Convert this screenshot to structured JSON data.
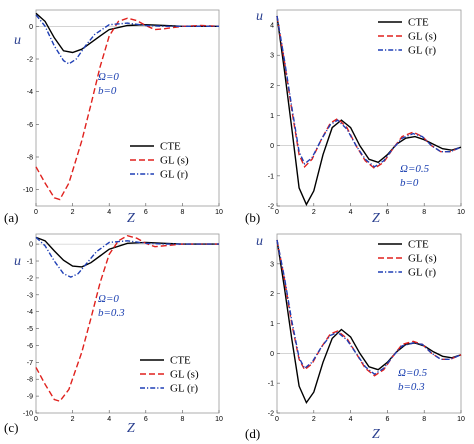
{
  "chart_data": [
    {
      "type": "line",
      "panel_label": "(a)",
      "xlabel": "Z",
      "ylabel": "u",
      "xlim": [
        0,
        10
      ],
      "ylim": [
        -11,
        1
      ],
      "xticks": [
        "0",
        "2",
        "4",
        "6",
        "8",
        "10"
      ],
      "yticks": [
        "0",
        "-2",
        "-4",
        "-6",
        "-8",
        "-10"
      ],
      "yticks_values": [
        0,
        -2,
        -4,
        -6,
        -8,
        -10
      ],
      "annotation": [
        "Ω=0",
        "b=0"
      ],
      "legend_position": "bottom-right",
      "series": [
        {
          "name": "CTE",
          "color": "#000000",
          "dash": "solid",
          "points": [
            [
              0,
              0.8
            ],
            [
              0.5,
              0.3
            ],
            [
              1,
              -0.7
            ],
            [
              1.5,
              -1.5
            ],
            [
              2,
              -1.6
            ],
            [
              2.5,
              -1.4
            ],
            [
              3,
              -1.0
            ],
            [
              3.5,
              -0.6
            ],
            [
              4,
              -0.2
            ],
            [
              5,
              0.05
            ],
            [
              6,
              0.1
            ],
            [
              7,
              0.05
            ],
            [
              8,
              0
            ],
            [
              9,
              0
            ],
            [
              10,
              0
            ]
          ]
        },
        {
          "name": "GL (s)",
          "color": "#e0211d",
          "dash": "dashed",
          "points": [
            [
              0,
              -8.6
            ],
            [
              0.5,
              -9.6
            ],
            [
              1,
              -10.5
            ],
            [
              1.3,
              -10.6
            ],
            [
              1.8,
              -9.6
            ],
            [
              2.5,
              -7.0
            ],
            [
              3,
              -4.8
            ],
            [
              3.5,
              -2.5
            ],
            [
              4,
              -0.6
            ],
            [
              4.5,
              0.3
            ],
            [
              5,
              0.5
            ],
            [
              5.5,
              0.35
            ],
            [
              6,
              0.05
            ],
            [
              6.5,
              -0.2
            ],
            [
              7,
              -0.15
            ],
            [
              8,
              0
            ],
            [
              9,
              0.05
            ],
            [
              10,
              0
            ]
          ]
        },
        {
          "name": "GL (r)",
          "color": "#1f3fb5",
          "dash": "dashdot",
          "points": [
            [
              0,
              0.7
            ],
            [
              0.5,
              0.0
            ],
            [
              1,
              -1.2
            ],
            [
              1.5,
              -2.1
            ],
            [
              1.8,
              -2.3
            ],
            [
              2.2,
              -2.0
            ],
            [
              2.7,
              -1.2
            ],
            [
              3.2,
              -0.5
            ],
            [
              4,
              0.1
            ],
            [
              5,
              0.2
            ],
            [
              6,
              0.05
            ],
            [
              7,
              0
            ],
            [
              8,
              0
            ],
            [
              10,
              0
            ]
          ]
        }
      ]
    },
    {
      "type": "line",
      "panel_label": "(b)",
      "xlabel": "Z",
      "ylabel": "u",
      "xlim": [
        0,
        10
      ],
      "ylim": [
        -2,
        4.5
      ],
      "xticks": [
        "0",
        "2",
        "4",
        "6",
        "8",
        "10"
      ],
      "yticks": [
        "4",
        "3",
        "2",
        "1",
        "0",
        "-1",
        "-2"
      ],
      "yticks_values": [
        4,
        3,
        2,
        1,
        0,
        -1,
        -2
      ],
      "annotation": [
        "Ω=0.5",
        "b=0"
      ],
      "legend_position": "top-right",
      "series": [
        {
          "name": "CTE",
          "color": "#000000",
          "dash": "solid",
          "points": [
            [
              0,
              4.3
            ],
            [
              0.4,
              2.5
            ],
            [
              0.8,
              0.6
            ],
            [
              1.2,
              -1.4
            ],
            [
              1.6,
              -1.95
            ],
            [
              2.0,
              -1.5
            ],
            [
              2.5,
              -0.3
            ],
            [
              3.0,
              0.6
            ],
            [
              3.5,
              0.85
            ],
            [
              4.0,
              0.6
            ],
            [
              4.5,
              0.0
            ],
            [
              5.0,
              -0.45
            ],
            [
              5.5,
              -0.55
            ],
            [
              6.0,
              -0.3
            ],
            [
              6.5,
              0.05
            ],
            [
              7.0,
              0.25
            ],
            [
              7.5,
              0.3
            ],
            [
              8.0,
              0.2
            ],
            [
              8.5,
              0.05
            ],
            [
              9.0,
              -0.1
            ],
            [
              9.5,
              -0.15
            ],
            [
              10,
              -0.05
            ]
          ]
        },
        {
          "name": "GL (s)",
          "color": "#e0211d",
          "dash": "dashed",
          "points": [
            [
              0,
              4.3
            ],
            [
              0.4,
              2.8
            ],
            [
              0.8,
              1.2
            ],
            [
              1.2,
              -0.3
            ],
            [
              1.5,
              -0.7
            ],
            [
              1.9,
              -0.45
            ],
            [
              2.4,
              0.2
            ],
            [
              2.9,
              0.75
            ],
            [
              3.3,
              0.9
            ],
            [
              3.8,
              0.6
            ],
            [
              4.3,
              0.0
            ],
            [
              4.8,
              -0.5
            ],
            [
              5.3,
              -0.75
            ],
            [
              5.8,
              -0.55
            ],
            [
              6.3,
              -0.1
            ],
            [
              6.8,
              0.3
            ],
            [
              7.4,
              0.45
            ],
            [
              7.9,
              0.3
            ],
            [
              8.4,
              0.0
            ],
            [
              8.9,
              -0.2
            ],
            [
              9.4,
              -0.2
            ],
            [
              10,
              -0.05
            ]
          ]
        },
        {
          "name": "GL (r)",
          "color": "#1f3fb5",
          "dash": "dashdot",
          "points": [
            [
              0,
              4.3
            ],
            [
              0.4,
              2.85
            ],
            [
              0.8,
              1.3
            ],
            [
              1.2,
              -0.2
            ],
            [
              1.5,
              -0.6
            ],
            [
              1.9,
              -0.4
            ],
            [
              2.4,
              0.2
            ],
            [
              2.9,
              0.7
            ],
            [
              3.3,
              0.85
            ],
            [
              3.8,
              0.55
            ],
            [
              4.3,
              0.0
            ],
            [
              4.8,
              -0.45
            ],
            [
              5.3,
              -0.7
            ],
            [
              5.8,
              -0.5
            ],
            [
              6.3,
              -0.1
            ],
            [
              6.8,
              0.25
            ],
            [
              7.4,
              0.4
            ],
            [
              7.9,
              0.3
            ],
            [
              8.4,
              0.0
            ],
            [
              8.9,
              -0.2
            ],
            [
              9.4,
              -0.2
            ],
            [
              10,
              -0.05
            ]
          ]
        }
      ]
    },
    {
      "type": "line",
      "panel_label": "(c)",
      "xlabel": "Z",
      "ylabel": "u",
      "xlim": [
        0,
        10
      ],
      "ylim": [
        -10,
        0.6
      ],
      "xticks": [
        "0",
        "2",
        "4",
        "6",
        "8",
        "10"
      ],
      "yticks": [
        "0",
        "-1",
        "-2",
        "-3",
        "-4",
        "-5",
        "-6",
        "-7",
        "-8",
        "-9",
        "-10"
      ],
      "yticks_values": [
        0,
        -1,
        -2,
        -3,
        -4,
        -5,
        -6,
        -7,
        -8,
        -9,
        -10
      ],
      "annotation": [
        "Ω=0",
        "b=0.3"
      ],
      "legend_position": "bottom-right",
      "series": [
        {
          "name": "CTE",
          "color": "#000000",
          "dash": "solid",
          "points": [
            [
              0,
              0.4
            ],
            [
              0.5,
              0.2
            ],
            [
              1,
              -0.4
            ],
            [
              1.5,
              -0.95
            ],
            [
              2,
              -1.3
            ],
            [
              2.5,
              -1.35
            ],
            [
              3,
              -1.1
            ],
            [
              3.5,
              -0.7
            ],
            [
              4,
              -0.3
            ],
            [
              5,
              0.05
            ],
            [
              6,
              0.1
            ],
            [
              7,
              0.05
            ],
            [
              8,
              0
            ],
            [
              10,
              0
            ]
          ]
        },
        {
          "name": "GL (s)",
          "color": "#e0211d",
          "dash": "dashed",
          "points": [
            [
              0,
              -7.3
            ],
            [
              0.5,
              -8.3
            ],
            [
              1,
              -9.2
            ],
            [
              1.3,
              -9.3
            ],
            [
              1.8,
              -8.6
            ],
            [
              2.5,
              -6.4
            ],
            [
              3,
              -4.4
            ],
            [
              3.5,
              -2.3
            ],
            [
              4,
              -0.6
            ],
            [
              4.5,
              0.2
            ],
            [
              5,
              0.5
            ],
            [
              5.5,
              0.35
            ],
            [
              6,
              0.05
            ],
            [
              6.5,
              -0.15
            ],
            [
              7,
              -0.1
            ],
            [
              8,
              0
            ],
            [
              10,
              0
            ]
          ]
        },
        {
          "name": "GL (r)",
          "color": "#1f3fb5",
          "dash": "dashdot",
          "points": [
            [
              0,
              0.4
            ],
            [
              0.5,
              -0.1
            ],
            [
              1,
              -1.0
            ],
            [
              1.5,
              -1.75
            ],
            [
              1.9,
              -1.95
            ],
            [
              2.3,
              -1.75
            ],
            [
              2.8,
              -1.1
            ],
            [
              3.3,
              -0.45
            ],
            [
              4,
              0.1
            ],
            [
              5,
              0.2
            ],
            [
              6,
              0.05
            ],
            [
              7,
              0
            ],
            [
              10,
              0
            ]
          ]
        }
      ]
    },
    {
      "type": "line",
      "panel_label": "(d)",
      "xlabel": "Z",
      "ylabel": "u",
      "xlim": [
        0,
        10
      ],
      "ylim": [
        -2,
        4
      ],
      "xticks": [
        "0",
        "2",
        "4",
        "6",
        "8",
        "10"
      ],
      "yticks": [
        "3",
        "2",
        "1",
        "0",
        "-1",
        "-2"
      ],
      "yticks_values": [
        3,
        2,
        1,
        0,
        -1,
        -2
      ],
      "annotation": [
        "Ω=0.5",
        "b=0.3"
      ],
      "legend_position": "top-right",
      "series": [
        {
          "name": "CTE",
          "color": "#000000",
          "dash": "solid",
          "points": [
            [
              0,
              3.8
            ],
            [
              0.4,
              2.2
            ],
            [
              0.8,
              0.5
            ],
            [
              1.2,
              -1.1
            ],
            [
              1.6,
              -1.65
            ],
            [
              2.0,
              -1.3
            ],
            [
              2.5,
              -0.3
            ],
            [
              3.0,
              0.5
            ],
            [
              3.5,
              0.8
            ],
            [
              4.0,
              0.55
            ],
            [
              4.5,
              0.0
            ],
            [
              5.0,
              -0.45
            ],
            [
              5.5,
              -0.55
            ],
            [
              6.0,
              -0.3
            ],
            [
              6.5,
              0.05
            ],
            [
              7.0,
              0.3
            ],
            [
              7.5,
              0.35
            ],
            [
              8.0,
              0.25
            ],
            [
              8.5,
              0.05
            ],
            [
              9.0,
              -0.1
            ],
            [
              9.5,
              -0.15
            ],
            [
              10,
              -0.05
            ]
          ]
        },
        {
          "name": "GL (s)",
          "color": "#e0211d",
          "dash": "dashed",
          "points": [
            [
              0,
              3.8
            ],
            [
              0.4,
              2.5
            ],
            [
              0.8,
              1.0
            ],
            [
              1.2,
              -0.2
            ],
            [
              1.5,
              -0.55
            ],
            [
              1.9,
              -0.35
            ],
            [
              2.4,
              0.2
            ],
            [
              2.9,
              0.65
            ],
            [
              3.3,
              0.75
            ],
            [
              3.8,
              0.5
            ],
            [
              4.3,
              0.0
            ],
            [
              4.8,
              -0.5
            ],
            [
              5.3,
              -0.75
            ],
            [
              5.8,
              -0.55
            ],
            [
              6.3,
              -0.1
            ],
            [
              6.8,
              0.3
            ],
            [
              7.4,
              0.4
            ],
            [
              7.9,
              0.3
            ],
            [
              8.4,
              0.0
            ],
            [
              8.9,
              -0.2
            ],
            [
              9.4,
              -0.2
            ],
            [
              10,
              -0.05
            ]
          ]
        },
        {
          "name": "GL (r)",
          "color": "#1f3fb5",
          "dash": "dashdot",
          "points": [
            [
              0,
              3.8
            ],
            [
              0.4,
              2.55
            ],
            [
              0.8,
              1.1
            ],
            [
              1.2,
              -0.15
            ],
            [
              1.5,
              -0.5
            ],
            [
              1.9,
              -0.3
            ],
            [
              2.4,
              0.2
            ],
            [
              2.9,
              0.6
            ],
            [
              3.3,
              0.7
            ],
            [
              3.8,
              0.45
            ],
            [
              4.3,
              0.0
            ],
            [
              4.8,
              -0.45
            ],
            [
              5.3,
              -0.7
            ],
            [
              5.8,
              -0.5
            ],
            [
              6.3,
              -0.1
            ],
            [
              6.8,
              0.25
            ],
            [
              7.4,
              0.35
            ],
            [
              7.9,
              0.3
            ],
            [
              8.4,
              0.0
            ],
            [
              8.9,
              -0.2
            ],
            [
              9.4,
              -0.2
            ],
            [
              10,
              -0.05
            ]
          ]
        }
      ]
    }
  ]
}
